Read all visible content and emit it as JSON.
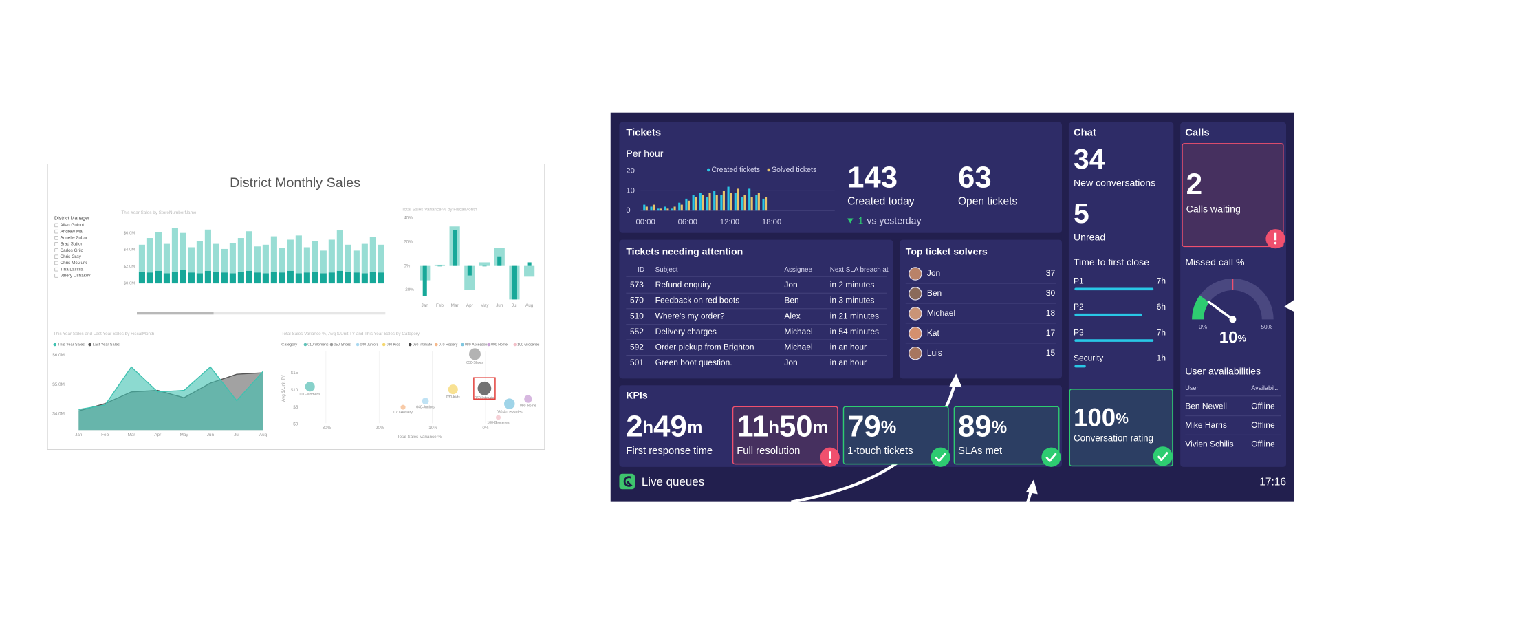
{
  "left_report": {
    "title": "District Monthly Sales",
    "slicer": {
      "title": "District Manager",
      "items": [
        "Allan Guinot",
        "Andrew Ma",
        "Annelie Zubar",
        "Brad Sutton",
        "Carlos Grilo",
        "Chris Gray",
        "Chris McGurk",
        "Tina Lassila",
        "Valery Ushakov"
      ]
    },
    "bar_chart": {
      "type": "bar",
      "title": "This Year Sales by StoreNumberName",
      "ylim": [
        0,
        7
      ],
      "yticks": [
        {
          "value": 0,
          "label": "$0.0M"
        },
        {
          "value": 2,
          "label": "$2.0M"
        },
        {
          "value": 4,
          "label": "$4.0M"
        },
        {
          "value": 6,
          "label": "$6.0M"
        }
      ],
      "series": [
        {
          "color": "#17a899",
          "values": [
            1.4,
            1.3,
            1.5,
            1.2,
            1.4,
            1.6,
            1.3,
            1.2,
            1.5,
            1.4,
            1.3,
            1.2,
            1.4,
            1.5,
            1.3,
            1.2,
            1.4,
            1.3,
            1.5,
            1.2,
            1.3,
            1.4,
            1.2,
            1.3,
            1.5,
            1.4,
            1.3,
            1.2,
            1.4,
            1.3
          ]
        },
        {
          "color": "#98ddd4",
          "values": [
            3.2,
            4.1,
            4.6,
            3.5,
            5.2,
            4.4,
            3.0,
            3.8,
            4.9,
            3.3,
            2.8,
            3.6,
            4.0,
            4.7,
            3.1,
            3.4,
            4.2,
            2.9,
            3.7,
            4.5,
            3.0,
            3.6,
            2.7,
            3.9,
            4.8,
            3.2,
            2.6,
            3.5,
            4.1,
            3.3
          ]
        }
      ]
    },
    "waterfall": {
      "type": "bar",
      "title": "Total Sales Variance % by FiscalMonth",
      "categories": [
        "Jan",
        "Feb",
        "Mar",
        "Apr",
        "May",
        "Jun",
        "Jul",
        "Aug"
      ],
      "ylim": [
        -25,
        45
      ],
      "yticks": [
        {
          "value": 40,
          "label": "40%"
        },
        {
          "value": 20,
          "label": "20%"
        },
        {
          "value": 0,
          "label": "0%"
        },
        {
          "value": -20,
          "label": "-20%"
        }
      ],
      "series": [
        {
          "color": "#98ddd4",
          "values": [
            -12,
            1,
            33,
            -20,
            3,
            15,
            -28,
            -9
          ]
        },
        {
          "color": "#17a899",
          "values": [
            -25,
            0,
            30,
            -8,
            0,
            8,
            -28,
            3
          ]
        }
      ]
    },
    "area_chart": {
      "type": "area",
      "title": "This Year Sales and Last Year Sales by FiscalMonth",
      "categories": [
        "Jan",
        "Feb",
        "Mar",
        "Apr",
        "May",
        "Jun",
        "Jul",
        "Aug"
      ],
      "ylim": [
        3.45,
        6.2
      ],
      "yticks": [
        {
          "value": 6,
          "label": "$6.0M"
        },
        {
          "value": 5,
          "label": "$5.0M"
        },
        {
          "value": 4,
          "label": "$4.0M"
        }
      ],
      "series": [
        {
          "name": "Last Year Sales",
          "color": "#555555",
          "values": [
            4.1,
            4.35,
            4.75,
            4.8,
            4.55,
            5.05,
            5.35,
            5.4
          ]
        },
        {
          "name": "This Year Sales",
          "color": "#3fc1b0",
          "values": [
            4.15,
            4.3,
            5.6,
            4.75,
            4.8,
            5.6,
            4.45,
            5.45
          ]
        }
      ]
    },
    "scatter": {
      "type": "scatter",
      "title": "Total Sales Variance %, Avg $/Unit TY and This Year Sales by Category",
      "legend_title": "Category",
      "x_label": "Total Sales Variance %",
      "y_label": "Avg $/Unit TY",
      "xlim": [
        -34.7,
        10
      ],
      "ylim": [
        -0.8,
        21.3
      ],
      "xticks": [
        {
          "value": -30,
          "label": "-30%"
        },
        {
          "value": -20,
          "label": "-20%"
        },
        {
          "value": -10,
          "label": "-10%"
        },
        {
          "value": 0,
          "label": "0%"
        }
      ],
      "yticks": [
        {
          "value": 0,
          "label": "$0"
        },
        {
          "value": 5,
          "label": "$5"
        },
        {
          "value": 10,
          "label": "$10"
        },
        {
          "value": 15,
          "label": "$15"
        }
      ],
      "points": [
        {
          "name": "010-Womens",
          "color": "#5fc2b8",
          "x": -33,
          "y": 11,
          "size": 5
        },
        {
          "name": "050-Shoes",
          "color": "#999999",
          "x": -2,
          "y": 20.5,
          "size": 6
        },
        {
          "name": "040-Juniors",
          "color": "#a9d8f0",
          "x": -11.3,
          "y": 6.8,
          "size": 3.5
        },
        {
          "name": "030-Kids",
          "color": "#f5d76e",
          "x": -6.1,
          "y": 10.2,
          "size": 5
        },
        {
          "name": "060-Intimate",
          "color": "#444444",
          "x": -0.2,
          "y": 10.5,
          "size": 7
        },
        {
          "name": "070-Hosiery",
          "color": "#f5b88a",
          "x": -15.5,
          "y": 5,
          "size": 2.5
        },
        {
          "name": "080-Accessories",
          "color": "#7fc6e0",
          "x": 4.5,
          "y": 6,
          "size": 5.5
        },
        {
          "name": "090-Home",
          "color": "#c9a0d6",
          "x": 8,
          "y": 7.4,
          "size": 4
        },
        {
          "name": "100-Groceries",
          "color": "#f3c0c8",
          "x": 2.4,
          "y": 2,
          "size": 2.5
        }
      ]
    }
  },
  "live_queues": {
    "tickets": {
      "title": "Tickets",
      "subtitle": "Per hour",
      "chart": {
        "type": "bar",
        "xlim": [
          -0.7,
          27
        ],
        "ylim": [
          0,
          20
        ],
        "yticks": [
          0,
          10,
          20
        ],
        "xticks": [
          {
            "value": 0,
            "label": "00:00"
          },
          {
            "value": 6,
            "label": "06:00"
          },
          {
            "value": 12,
            "label": "12:00"
          },
          {
            "value": 18,
            "label": "18:00"
          }
        ],
        "x": [
          0,
          1,
          2,
          3,
          4,
          5,
          6,
          7,
          8,
          9,
          10,
          11,
          12,
          13,
          14,
          15,
          16,
          17
        ],
        "series": [
          {
            "name": "Created tickets",
            "color": "#29c7e6",
            "values": [
              3,
              2,
              1,
              2,
              1,
              4,
              6,
              8,
              9,
              7,
              10,
              8,
              12,
              9,
              7,
              11,
              8,
              6
            ]
          },
          {
            "name": "Solved tickets",
            "color": "#e9c46a",
            "values": [
              2,
              3,
              1,
              1,
              2,
              3,
              5,
              7,
              8,
              9,
              8,
              10,
              9,
              11,
              8,
              7,
              9,
              7
            ]
          }
        ]
      },
      "created_today": {
        "value": 143,
        "label": "Created today"
      },
      "open": {
        "value": 63,
        "label": "Open tickets"
      },
      "change": {
        "value": 1,
        "label": "vs yesterday"
      }
    },
    "attention": {
      "title": "Tickets needing attention",
      "columns": [
        "ID",
        "Subject",
        "Assignee",
        "Next SLA breach at"
      ],
      "rows": [
        [
          573,
          "Refund enquiry",
          "Jon",
          "in 2 minutes"
        ],
        [
          570,
          "Feedback on red boots",
          "Ben",
          "in 3 minutes"
        ],
        [
          510,
          "Where's my order?",
          "Alex",
          "in 21 minutes"
        ],
        [
          552,
          "Delivery charges",
          "Michael",
          "in 54 minutes"
        ],
        [
          592,
          "Order pickup from Brighton",
          "Michael",
          "in an hour"
        ],
        [
          501,
          "Green boot question.",
          "Jon",
          "in an hour"
        ]
      ]
    },
    "solvers": {
      "title": "Top ticket solvers",
      "rows": [
        {
          "name": "Jon",
          "count": 37
        },
        {
          "name": "Ben",
          "count": 30
        },
        {
          "name": "Michael",
          "count": 18
        },
        {
          "name": "Kat",
          "count": 17
        },
        {
          "name": "Luis",
          "count": 15
        }
      ]
    },
    "kpis": {
      "title": "KPIs",
      "items": [
        {
          "parts": [
            "2",
            "h",
            "49",
            "m"
          ],
          "label": "First response time"
        },
        {
          "parts": [
            "11",
            "h",
            "50",
            "m"
          ],
          "label": "Full resolution",
          "status": "alert"
        },
        {
          "parts": [
            "79",
            "%"
          ],
          "label": "1-touch tickets",
          "status": "ok"
        },
        {
          "parts": [
            "89",
            "%"
          ],
          "label": "SLAs met",
          "status": "ok"
        }
      ]
    },
    "chat": {
      "title": "Chat",
      "new": {
        "value": 34,
        "label": "New conversations"
      },
      "unread": {
        "value": 5,
        "label": "Unread"
      },
      "close": {
        "title": "Time to first close",
        "xlim": [
          0,
          8
        ],
        "rows": [
          {
            "name": "P1",
            "value": 7,
            "label": "7h"
          },
          {
            "name": "P2",
            "value": 6,
            "label": "6h"
          },
          {
            "name": "P3",
            "value": 7,
            "label": "7h"
          },
          {
            "name": "Security",
            "value": 1,
            "label": "1h"
          }
        ]
      },
      "rating": {
        "parts": [
          "100",
          "%"
        ],
        "label": "Conversation rating",
        "status": "ok"
      }
    },
    "calls": {
      "title": "Calls",
      "waiting": {
        "value": 2,
        "label": "Calls waiting",
        "status": "alert"
      },
      "missed": {
        "title": "Missed call %",
        "value": 10,
        "unit": "%",
        "min": {
          "value": 0,
          "label": "0%"
        },
        "max": {
          "value": 50,
          "label": "50%"
        }
      }
    },
    "users": {
      "title": "User availabilities",
      "columns": [
        "User",
        "Availabil..."
      ],
      "rows": [
        [
          "Ben Newell",
          "Offline"
        ],
        [
          "Mike Harris",
          "Offline"
        ],
        [
          "Vivien Schilis",
          "Offline"
        ]
      ]
    },
    "footer": {
      "name": "Live queues",
      "time": "17:16"
    }
  }
}
